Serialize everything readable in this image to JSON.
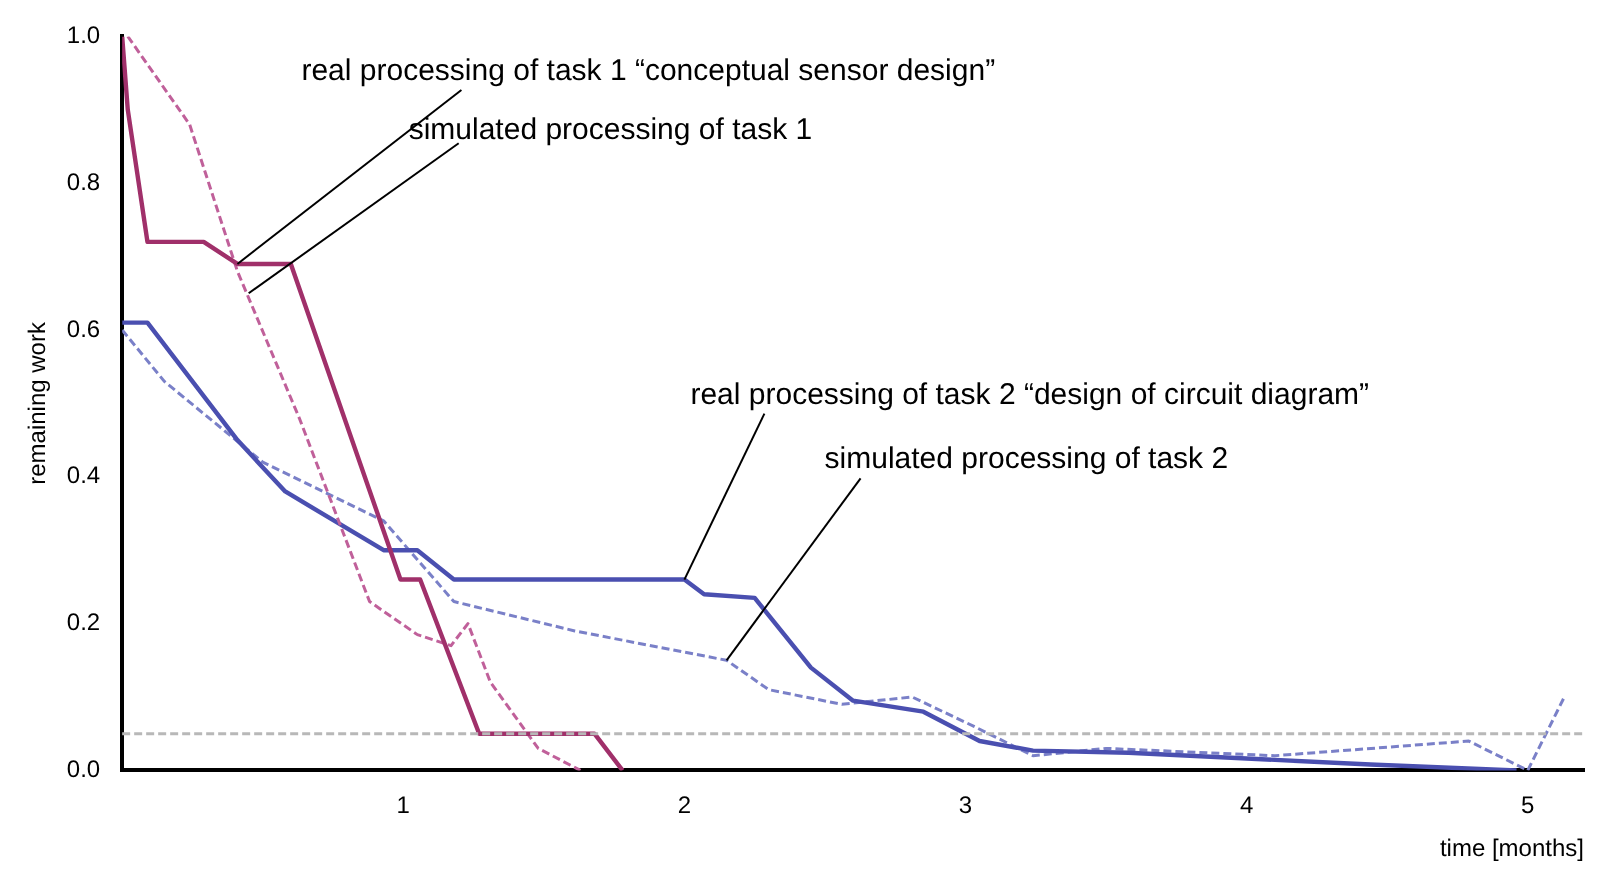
{
  "chart_data": {
    "type": "line",
    "xlabel": "time [months]",
    "ylabel": "remaining work",
    "xlim": [
      0,
      5.2
    ],
    "xticks": [
      1,
      2,
      3,
      4,
      5
    ],
    "ylim": [
      0,
      1
    ],
    "yticks": [
      {
        "value": 0,
        "label": "0.0"
      },
      {
        "value": 0.2,
        "label": "0.2"
      },
      {
        "value": 0.4,
        "label": "0.4"
      },
      {
        "value": 0.6,
        "label": "0.6"
      },
      {
        "value": 0.8,
        "label": "0.8"
      },
      {
        "value": 1,
        "label": "1.0"
      }
    ],
    "grid": false,
    "legend": false,
    "marker": "none",
    "series": [
      {
        "color": "#a0306a",
        "line_style": "solid",
        "x": [
          0,
          0.02,
          0.09,
          0.29,
          0.41,
          0.6,
          0.99,
          1.06,
          1.27,
          1.68,
          1.78
        ],
        "values": [
          1.0,
          0.9,
          0.72,
          0.72,
          0.69,
          0.69,
          0.26,
          0.26,
          0.05,
          0.05,
          0.0
        ]
      },
      {
        "color": "#c0609a",
        "line_style": "dashed",
        "x": [
          0.02,
          0.24,
          0.41,
          0.63,
          0.88,
          1.05,
          1.17,
          1.23,
          1.31,
          1.48,
          1.63
        ],
        "values": [
          1.0,
          0.88,
          0.68,
          0.48,
          0.23,
          0.185,
          0.17,
          0.2,
          0.12,
          0.03,
          0.0
        ]
      },
      {
        "color": "#4a4fb0",
        "line_style": "solid",
        "x": [
          0,
          0.09,
          0.41,
          0.58,
          0.93,
          1.05,
          1.18,
          2.0,
          2.07,
          2.25,
          2.45,
          2.6,
          2.85,
          3.05,
          3.24,
          3.58,
          4.44,
          4.96
        ],
        "values": [
          0.61,
          0.61,
          0.45,
          0.38,
          0.3,
          0.3,
          0.26,
          0.26,
          0.24,
          0.235,
          0.14,
          0.095,
          0.08,
          0.04,
          0.027,
          0.024,
          0.008,
          0.0
        ]
      },
      {
        "color": "#7a80c8",
        "line_style": "dashed",
        "x": [
          0,
          0.15,
          0.5,
          0.93,
          1.18,
          1.61,
          2.15,
          2.3,
          2.56,
          2.81,
          3.03,
          3.24,
          3.5,
          4.1,
          4.79,
          5.0,
          5.13
        ],
        "values": [
          0.6,
          0.53,
          0.42,
          0.34,
          0.23,
          0.19,
          0.15,
          0.11,
          0.09,
          0.1,
          0.06,
          0.02,
          0.03,
          0.02,
          0.04,
          0.0,
          0.1
        ]
      }
    ],
    "ref_lines": [
      {
        "axis": "y",
        "value": 0.05,
        "color": "#b8b8b8",
        "line_style": "dashed"
      }
    ],
    "annotations": [
      {
        "text": "real processing of task 1 “conceptual sensor design”",
        "x": 0.41,
        "y": 0.69
      },
      {
        "text": "simulated processing of task 1",
        "x": 0.45,
        "y": 0.65
      },
      {
        "text": "real processing of task 2 “design of circuit diagram”",
        "x": 2.0,
        "y": 0.26
      },
      {
        "text": "simulated processing of task 2",
        "x": 2.15,
        "y": 0.15
      }
    ]
  }
}
